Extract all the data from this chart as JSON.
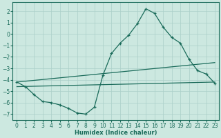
{
  "xlabel": "Humidex (Indice chaleur)",
  "bg_color": "#cce8e0",
  "grid_color": "#aacfc8",
  "line_color": "#1a6b5a",
  "xlim": [
    -0.5,
    23.5
  ],
  "ylim": [
    -7.5,
    2.8
  ],
  "yticks": [
    2,
    1,
    0,
    -1,
    -2,
    -3,
    -4,
    -5,
    -6,
    -7
  ],
  "xticks": [
    0,
    1,
    2,
    3,
    4,
    5,
    6,
    7,
    8,
    9,
    10,
    11,
    12,
    13,
    14,
    15,
    16,
    17,
    18,
    19,
    20,
    21,
    22,
    23
  ],
  "line1_x": [
    0,
    1,
    2,
    3,
    4,
    5,
    6,
    7,
    8,
    9,
    10,
    11,
    12,
    13,
    14,
    15,
    16,
    17,
    18,
    19,
    20,
    21,
    22,
    23
  ],
  "line1_y": [
    -4.2,
    -4.6,
    -5.3,
    -5.9,
    -6.0,
    -6.2,
    -6.5,
    -6.9,
    -7.0,
    -6.4,
    -3.6,
    -1.7,
    -0.8,
    -0.1,
    0.9,
    2.2,
    1.8,
    0.6,
    -0.3,
    -0.8,
    -2.2,
    -3.2,
    -3.5,
    -4.3
  ],
  "line2_x": [
    0,
    23
  ],
  "line2_y": [
    -4.2,
    -2.5
  ],
  "line3_x": [
    0,
    23
  ],
  "line3_y": [
    -4.6,
    -4.2
  ]
}
